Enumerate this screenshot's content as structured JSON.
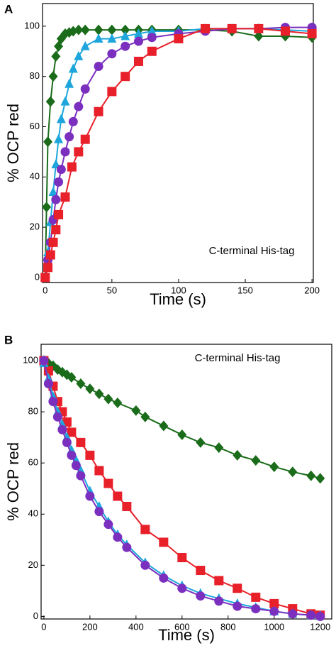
{
  "chart_data": [
    {
      "type": "line",
      "panel": "A",
      "ylabel": "% OCP red",
      "xlabel": "Time (s)",
      "annotation": "C-terminal His-tag",
      "xlim": [
        -2,
        201
      ],
      "ylim": [
        -2,
        109
      ],
      "xticks": [
        0,
        50,
        100,
        150,
        200
      ],
      "yticks": [
        0,
        20,
        40,
        60,
        80,
        100
      ],
      "series": [
        {
          "color": "#1a6b1a",
          "marker": "diamond",
          "x": [
            0,
            1,
            2,
            4,
            6,
            8,
            10,
            12,
            15,
            18,
            21,
            25,
            30,
            40,
            50,
            60,
            70,
            80,
            100,
            120,
            140,
            160,
            180,
            200
          ],
          "values": [
            0,
            28,
            54,
            70,
            80,
            88,
            92,
            95,
            97,
            97.5,
            98,
            98.5,
            98.5,
            98.5,
            98.5,
            98.5,
            98.5,
            98.5,
            98.5,
            98.5,
            98,
            96,
            96,
            95.5
          ]
        },
        {
          "color": "#1ea6dc",
          "marker": "triangle",
          "x": [
            0,
            2,
            4,
            6,
            8,
            10,
            12,
            15,
            18,
            21,
            25,
            30,
            40,
            50,
            60,
            70,
            80,
            100,
            120,
            140,
            160,
            180,
            200
          ],
          "values": [
            0,
            10,
            22,
            34,
            45,
            55,
            63,
            70,
            77,
            83,
            88,
            92,
            95,
            95,
            96,
            97,
            98,
            98,
            99,
            99,
            99,
            98.5,
            98
          ]
        },
        {
          "color": "#7b2fbf",
          "marker": "circle",
          "x": [
            0,
            2,
            4,
            6,
            8,
            10,
            12,
            15,
            18,
            21,
            25,
            30,
            40,
            50,
            60,
            70,
            80,
            100,
            120,
            140,
            160,
            180,
            200
          ],
          "values": [
            0,
            7,
            14,
            23,
            31,
            38,
            43,
            50,
            56,
            62,
            68,
            75,
            84,
            89,
            92,
            94,
            95.5,
            97,
            98,
            99,
            99,
            99.5,
            99.5
          ]
        },
        {
          "color": "#e8202a",
          "marker": "square",
          "x": [
            0,
            2,
            4,
            6,
            8,
            10,
            15,
            20,
            25,
            30,
            40,
            50,
            60,
            70,
            80,
            100,
            120,
            140,
            160,
            180,
            200
          ],
          "values": [
            0,
            4,
            9,
            14,
            19,
            25,
            32,
            44,
            50,
            55,
            66,
            74,
            80,
            86,
            90,
            95,
            99,
            99,
            99,
            98,
            97
          ]
        }
      ]
    },
    {
      "type": "line",
      "panel": "B",
      "ylabel": "% OCP red",
      "xlabel": "Time (s)",
      "annotation": "C-terminal His-tag",
      "xlim": [
        -12,
        1250
      ],
      "ylim": [
        -1,
        106.4
      ],
      "xticks": [
        0,
        200,
        400,
        600,
        800,
        1000,
        1200
      ],
      "yticks": [
        0,
        20,
        40,
        60,
        80,
        100
      ],
      "series": [
        {
          "color": "#1a6b1a",
          "marker": "diamond",
          "x": [
            0,
            20,
            40,
            60,
            80,
            100,
            120,
            160,
            200,
            240,
            280,
            320,
            400,
            440,
            520,
            600,
            680,
            760,
            840,
            920,
            1000,
            1080,
            1160,
            1200
          ],
          "values": [
            100,
            99,
            98,
            96.5,
            95.5,
            94.5,
            93.5,
            91,
            89,
            87,
            85,
            83.5,
            80.5,
            78,
            74.5,
            71,
            68,
            66,
            63,
            61,
            58.5,
            56.5,
            55,
            54
          ]
        },
        {
          "color": "#e8202a",
          "marker": "square",
          "x": [
            0,
            20,
            40,
            60,
            80,
            100,
            120,
            160,
            200,
            240,
            280,
            320,
            360,
            440,
            520,
            600,
            680,
            760,
            840,
            920,
            1000,
            1080,
            1160,
            1200
          ],
          "values": [
            100,
            96,
            90,
            84,
            80,
            76,
            72,
            68,
            63,
            57,
            52,
            47,
            43,
            34,
            29,
            23,
            18,
            14,
            11,
            7.5,
            5,
            3,
            1,
            0.5
          ]
        },
        {
          "color": "#1ea6dc",
          "marker": "triangle",
          "x": [
            0,
            20,
            40,
            60,
            80,
            100,
            120,
            140,
            160,
            200,
            240,
            280,
            320,
            360,
            440,
            520,
            600,
            680,
            760,
            840,
            920,
            1000,
            1080,
            1160,
            1200
          ],
          "values": [
            99,
            93,
            86,
            80,
            75,
            70,
            65,
            61,
            57,
            49,
            43,
            37,
            32,
            28,
            21,
            16,
            12,
            9,
            7,
            5,
            3.5,
            2,
            1,
            0.5,
            0.3
          ]
        },
        {
          "color": "#7b2fbf",
          "marker": "circle",
          "x": [
            0,
            20,
            40,
            60,
            80,
            100,
            120,
            140,
            160,
            200,
            240,
            280,
            320,
            360,
            440,
            520,
            600,
            680,
            760,
            840,
            920,
            1000,
            1080,
            1160,
            1200
          ],
          "values": [
            100,
            91,
            84,
            78,
            73,
            68,
            63,
            59,
            55,
            47,
            41,
            36,
            31,
            27,
            20,
            15,
            11,
            8,
            6,
            4,
            3,
            2,
            1,
            0.5,
            0
          ]
        }
      ]
    }
  ]
}
